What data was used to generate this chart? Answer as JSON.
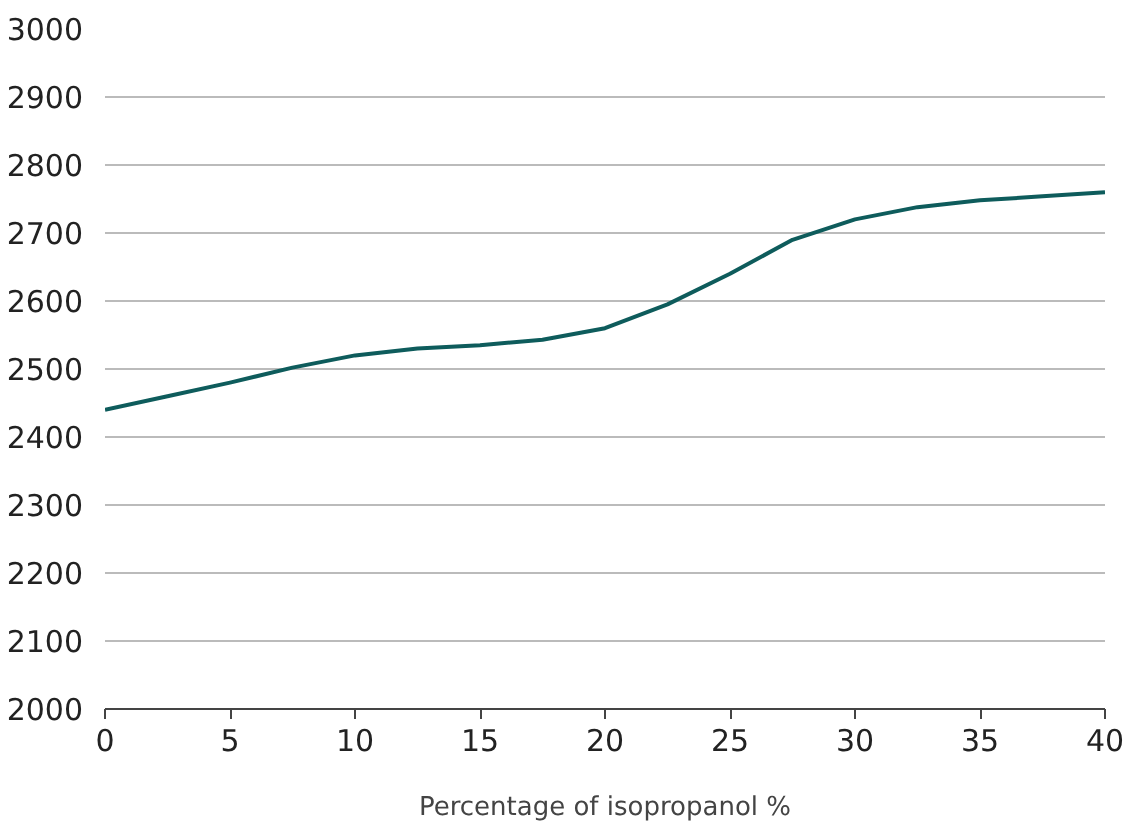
{
  "chart_data": {
    "type": "line",
    "xlabel": "Percentage of isopropanol %",
    "x": [
      0,
      2.5,
      5,
      7.5,
      10,
      12.5,
      15,
      17.5,
      20,
      22.5,
      25,
      27.5,
      30,
      32.5,
      35,
      37.5,
      40
    ],
    "series": [
      {
        "color": "#0e5c5c",
        "values": [
          2440,
          2460,
          2480,
          2502,
          2520,
          2530,
          2535,
          2543,
          2560,
          2595,
          2640,
          2690,
          2720,
          2738,
          2748,
          2754,
          2760
        ]
      }
    ],
    "xlim": [
      0,
      40
    ],
    "xticks": [
      0,
      5,
      10,
      15,
      20,
      25,
      30,
      35,
      40
    ],
    "ylim": [
      2000,
      3000
    ],
    "yticks": [
      2000,
      2100,
      2200,
      2300,
      2400,
      2500,
      2600,
      2700,
      2800,
      2900,
      3000
    ],
    "grid": "y",
    "marker": "none",
    "line_style": "solid"
  }
}
